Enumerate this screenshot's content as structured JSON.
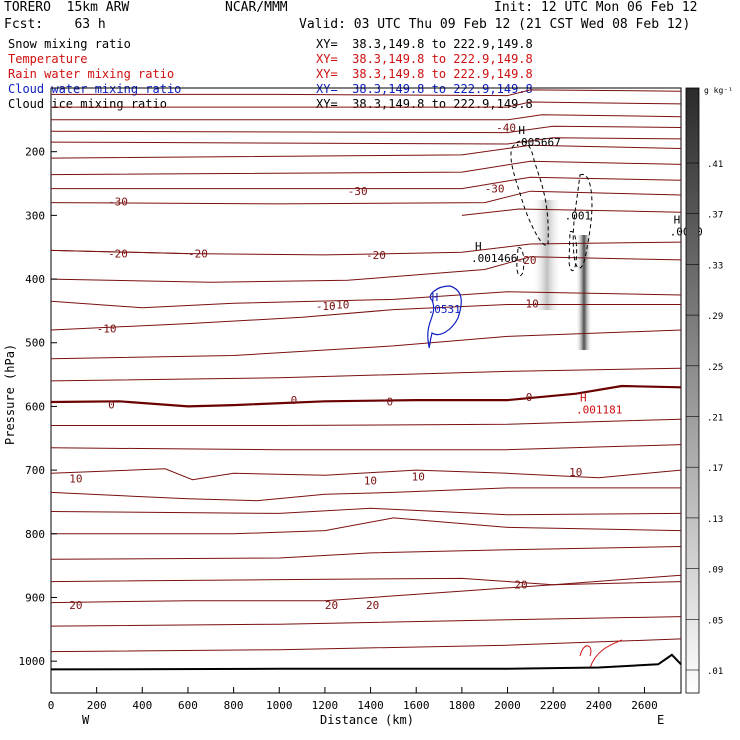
{
  "header": {
    "model": "TORERO  15km ARW",
    "center": "NCAR/MMM",
    "init": "Init: 12 UTC Mon 06 Feb 12",
    "fcst": "Fcst:    63 h",
    "valid": "Valid: 03 UTC Thu 09 Feb 12 (21 CST Wed 08 Feb 12)"
  },
  "legend": [
    {
      "label": "Snow mixing ratio",
      "xy": "XY=  38.3,149.8 to 222.9,149.8",
      "color": "#000000"
    },
    {
      "label": "Temperature",
      "xy": "XY=  38.3,149.8 to 222.9,149.8",
      "color": "#d01010"
    },
    {
      "label": "Rain water mixing ratio",
      "xy": "XY=  38.3,149.8 to 222.9,149.8",
      "color": "#d01010"
    },
    {
      "label": "Cloud water mixing ratio",
      "xy": "XY=  38.3,149.8 to 222.9,149.8",
      "color": "#1020c0"
    },
    {
      "label": "Cloud ice mixing ratio",
      "xy": "XY=  38.3,149.8 to 222.9,149.8",
      "color": "#000000"
    }
  ],
  "colors": {
    "temperature": "#7a1010",
    "zero_isotherm": "#6a0000",
    "rain": "#d01010",
    "cloud_water": "#1020c0",
    "snow": "#000000",
    "terrain": "#000000"
  },
  "chart_data": {
    "type": "cross-section",
    "xlabel": "Distance (km)",
    "ylabel": "Pressure (hPa)",
    "x_range": [
      0,
      2760
    ],
    "y_range": [
      100,
      1050
    ],
    "x_ticks": [
      0,
      200,
      400,
      600,
      800,
      1000,
      1200,
      1400,
      1600,
      1800,
      2000,
      2200,
      2400,
      2600
    ],
    "y_ticks": [
      200,
      300,
      400,
      500,
      600,
      700,
      800,
      900,
      1000
    ],
    "west_label": "W",
    "east_label": "E",
    "colorbar": {
      "units": "g kg⁻¹",
      "labels": [
        ".01",
        ".05",
        ".09",
        ".13",
        ".17",
        ".21",
        ".25",
        ".29",
        ".33",
        ".37",
        ".41"
      ]
    },
    "temperature_isotherms": [
      {
        "label": "-40",
        "points": [
          [
            0,
            110
          ],
          [
            1000,
            110
          ],
          [
            2000,
            112
          ],
          [
            2100,
            103
          ],
          [
            2760,
            105
          ]
        ]
      },
      {
        "label": "",
        "points": [
          [
            0,
            130
          ],
          [
            2000,
            130
          ],
          [
            2100,
            122
          ],
          [
            2760,
            125
          ]
        ]
      },
      {
        "label": "",
        "points": [
          [
            0,
            150
          ],
          [
            2000,
            150
          ],
          [
            2150,
            142
          ],
          [
            2760,
            145
          ]
        ]
      },
      {
        "label": "",
        "points": [
          [
            0,
            168
          ],
          [
            2000,
            170
          ],
          [
            2200,
            160
          ],
          [
            2760,
            162
          ]
        ]
      },
      {
        "label": "",
        "points": [
          [
            0,
            185
          ],
          [
            2000,
            188
          ],
          [
            2200,
            178
          ],
          [
            2760,
            180
          ]
        ]
      },
      {
        "label": "-40",
        "labelAt": [
          1950,
          162
        ],
        "points": [
          [
            0,
            210
          ],
          [
            1800,
            205
          ],
          [
            2100,
            190
          ],
          [
            2760,
            195
          ]
        ]
      },
      {
        "label": "",
        "points": [
          [
            0,
            236
          ],
          [
            1800,
            232
          ],
          [
            2100,
            215
          ],
          [
            2760,
            220
          ]
        ]
      },
      {
        "label": "-30",
        "labelAt": [
          1300,
          262
        ],
        "points": [
          [
            0,
            258
          ],
          [
            1800,
            258
          ],
          [
            2100,
            240
          ],
          [
            2760,
            245
          ]
        ]
      },
      {
        "label": "-30",
        "labelAt": [
          250,
          278
        ],
        "points": [
          [
            0,
            280
          ],
          [
            1000,
            282
          ],
          [
            1900,
            280
          ],
          [
            2100,
            262
          ],
          [
            2760,
            268
          ]
        ]
      },
      {
        "label": "-30",
        "labelAt": [
          1900,
          258
        ],
        "points": [
          [
            1800,
            300
          ],
          [
            2050,
            290
          ],
          [
            2760,
            295
          ]
        ]
      },
      {
        "label": "-20",
        "labelAt": [
          250,
          360
        ],
        "points": [
          [
            0,
            355
          ],
          [
            600,
            360
          ],
          [
            1200,
            362
          ],
          [
            1800,
            358
          ],
          [
            2100,
            345
          ],
          [
            2760,
            342
          ]
        ]
      },
      {
        "label": "-20",
        "labelAt": [
          600,
          360
        ],
        "points": [
          [
            0,
            355
          ],
          [
            600,
            360
          ]
        ]
      },
      {
        "label": "-20",
        "labelAt": [
          1380,
          362
        ],
        "points": [
          [
            0,
            400
          ],
          [
            700,
            405
          ],
          [
            1300,
            402
          ],
          [
            1900,
            385
          ],
          [
            2100,
            365
          ],
          [
            2760,
            370
          ]
        ]
      },
      {
        "label": "",
        "points": [
          [
            0,
            435
          ],
          [
            400,
            445
          ],
          [
            800,
            438
          ],
          [
            1500,
            432
          ],
          [
            2000,
            420
          ],
          [
            2760,
            425
          ]
        ]
      },
      {
        "label": "-10",
        "labelAt": [
          1220,
          440
        ],
        "points": [
          [
            0,
            480
          ],
          [
            600,
            470
          ],
          [
            1100,
            460
          ],
          [
            1500,
            448
          ],
          [
            2000,
            440
          ],
          [
            2760,
            440
          ]
        ]
      },
      {
        "label": "-10",
        "labelAt": [
          200,
          478
        ],
        "points": [
          [
            0,
            480
          ]
        ]
      },
      {
        "label": "-10",
        "labelAt": [
          2050,
          438
        ],
        "points": [
          [
            0,
            525
          ],
          [
            800,
            520
          ],
          [
            1500,
            505
          ],
          [
            2000,
            490
          ],
          [
            2760,
            480
          ]
        ]
      },
      {
        "label": "",
        "points": [
          [
            0,
            560
          ],
          [
            1000,
            555
          ],
          [
            2000,
            545
          ],
          [
            2760,
            540
          ]
        ]
      }
    ],
    "zero_isotherm": {
      "label": "0",
      "points": [
        [
          0,
          593
        ],
        [
          300,
          592
        ],
        [
          600,
          600
        ],
        [
          800,
          598
        ],
        [
          1200,
          592
        ],
        [
          1600,
          590
        ],
        [
          2000,
          590
        ],
        [
          2300,
          580
        ],
        [
          2500,
          568
        ],
        [
          2760,
          570
        ]
      ]
    },
    "warm_isotherms": [
      {
        "points": [
          [
            0,
            630
          ],
          [
            1000,
            630
          ],
          [
            2000,
            628
          ],
          [
            2760,
            620
          ]
        ]
      },
      {
        "points": [
          [
            0,
            665
          ],
          [
            1000,
            668
          ],
          [
            2000,
            668
          ],
          [
            2760,
            660
          ]
        ]
      },
      {
        "label": "10",
        "points": [
          [
            0,
            705
          ],
          [
            500,
            698
          ],
          [
            620,
            715
          ],
          [
            800,
            705
          ],
          [
            1200,
            708
          ],
          [
            1600,
            700
          ],
          [
            2000,
            705
          ],
          [
            2400,
            712
          ],
          [
            2760,
            700
          ]
        ]
      },
      {
        "label": "10",
        "points": [
          [
            0,
            735
          ],
          [
            600,
            745
          ],
          [
            900,
            748
          ],
          [
            1200,
            738
          ],
          [
            1500,
            735
          ],
          [
            2000,
            728
          ],
          [
            2760,
            728
          ]
        ]
      },
      {
        "points": [
          [
            0,
            765
          ],
          [
            1000,
            768
          ],
          [
            1400,
            760
          ],
          [
            2000,
            770
          ],
          [
            2760,
            768
          ]
        ]
      },
      {
        "points": [
          [
            0,
            800
          ],
          [
            800,
            800
          ],
          [
            1200,
            795
          ],
          [
            1500,
            775
          ],
          [
            2000,
            790
          ],
          [
            2760,
            795
          ]
        ]
      },
      {
        "points": [
          [
            0,
            840
          ],
          [
            1000,
            838
          ],
          [
            1400,
            830
          ],
          [
            2000,
            825
          ],
          [
            2760,
            820
          ]
        ]
      },
      {
        "points": [
          [
            0,
            875
          ],
          [
            1000,
            872
          ],
          [
            1800,
            870
          ],
          [
            2200,
            880
          ],
          [
            2760,
            865
          ]
        ]
      },
      {
        "label": "20",
        "points": [
          [
            0,
            908
          ],
          [
            600,
            905
          ],
          [
            1200,
            905
          ],
          [
            1800,
            890
          ],
          [
            2200,
            880
          ],
          [
            2760,
            875
          ]
        ]
      },
      {
        "points": [
          [
            0,
            945
          ],
          [
            1000,
            942
          ],
          [
            2000,
            935
          ],
          [
            2760,
            930
          ]
        ]
      },
      {
        "points": [
          [
            0,
            985
          ],
          [
            1000,
            982
          ],
          [
            2000,
            975
          ],
          [
            2760,
            965
          ]
        ]
      }
    ],
    "text_labels": [
      {
        "text": "-10",
        "x": 1160,
        "y": 442,
        "color": "#7a1010"
      },
      {
        "text": "0",
        "x": 1050,
        "y": 590,
        "color": "#7a1010"
      },
      {
        "text": "0",
        "x": 1470,
        "y": 592,
        "color": "#7a1010"
      },
      {
        "text": "0",
        "x": 2080,
        "y": 585,
        "color": "#7a1010"
      },
      {
        "text": "10",
        "x": 80,
        "y": 713,
        "color": "#7a1010"
      },
      {
        "text": "10",
        "x": 1370,
        "y": 716,
        "color": "#7a1010"
      },
      {
        "text": "10",
        "x": 1580,
        "y": 710,
        "color": "#7a1010"
      },
      {
        "text": "10",
        "x": 2270,
        "y": 703,
        "color": "#7a1010"
      },
      {
        "text": "20",
        "x": 80,
        "y": 912,
        "color": "#7a1010"
      },
      {
        "text": "20",
        "x": 1200,
        "y": 912,
        "color": "#7a1010"
      },
      {
        "text": "20",
        "x": 1380,
        "y": 912,
        "color": "#7a1010"
      },
      {
        "text": "20",
        "x": 2030,
        "y": 880,
        "color": "#7a1010"
      },
      {
        "text": "-20",
        "x": 2040,
        "y": 370,
        "color": "#7a1010"
      }
    ],
    "extrema": [
      {
        "tag": "H",
        "value": ".005667",
        "x": 2030,
        "y": 185,
        "color": "#000000"
      },
      {
        "tag": "H",
        "value": ".001466",
        "x": 1840,
        "y": 367,
        "color": "#000000"
      },
      {
        "tag": "H",
        "value": ".0000",
        "x": 2710,
        "y": 325,
        "color": "#000000"
      },
      {
        "tag": "H",
        "value": ".0531",
        "x": 1650,
        "y": 447,
        "color": "#1020c0"
      },
      {
        "tag": "H",
        "value": ".001181",
        "x": 2300,
        "y": 605,
        "color": "#d01010"
      },
      {
        "tag": "",
        "value": ".001",
        "x": 2250,
        "y": 300,
        "color": "#000000"
      }
    ]
  }
}
